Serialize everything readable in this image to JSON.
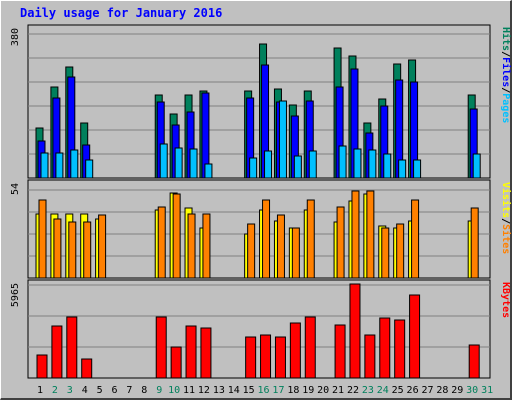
{
  "title": "Daily usage for January 2016",
  "colors": {
    "background": "#c0c0c0",
    "title": "#0000ff",
    "hits": "#00805c",
    "files": "#0000ff",
    "pages": "#00c0ff",
    "visits": "#ffff00",
    "sites": "#ff8000",
    "kbytes": "#ff0000",
    "grid": "#808080",
    "weekend_label": "#00805c",
    "weekday_label": "#000000"
  },
  "chart_data": [
    {
      "type": "bar",
      "panel": "hits_files_pages",
      "ymax_label": "380",
      "ylim": [
        0,
        380
      ],
      "legend": [
        "Pages",
        "/",
        "Files",
        "/",
        "Hits"
      ],
      "legend_colors": [
        "#00c0ff",
        "#000000",
        "#0000ff",
        "#000000",
        "#00805c"
      ],
      "categories": [
        "1",
        "2",
        "3",
        "4",
        "5",
        "6",
        "7",
        "8",
        "9",
        "10",
        "11",
        "12",
        "13",
        "14",
        "15",
        "16",
        "17",
        "18",
        "19",
        "20",
        "21",
        "22",
        "23",
        "24",
        "25",
        "26",
        "27",
        "28",
        "29",
        "30",
        "31"
      ],
      "series": [
        {
          "name": "Hits",
          "values": [
            128,
            231,
            282,
            139,
            0,
            0,
            0,
            0,
            212,
            162,
            211,
            221,
            0,
            0,
            221,
            341,
            226,
            186,
            221,
            0,
            331,
            311,
            141,
            202,
            291,
            301,
            0,
            0,
            0,
            211,
            0
          ]
        },
        {
          "name": "Files",
          "values": [
            94,
            204,
            257,
            85,
            0,
            0,
            0,
            0,
            194,
            136,
            169,
            216,
            0,
            0,
            204,
            289,
            193,
            158,
            197,
            0,
            233,
            279,
            115,
            183,
            250,
            245,
            0,
            0,
            0,
            176,
            0
          ]
        },
        {
          "name": "Pages",
          "values": [
            63,
            65,
            72,
            47,
            0,
            0,
            0,
            0,
            86,
            76,
            73,
            35,
            0,
            0,
            50,
            69,
            197,
            55,
            68,
            0,
            82,
            75,
            71,
            61,
            47,
            46,
            0,
            0,
            0,
            60,
            0
          ]
        }
      ]
    },
    {
      "type": "bar",
      "panel": "visits_sites",
      "ymax_label": "54",
      "ylim": [
        0,
        54
      ],
      "legend": [
        "Sites",
        "/",
        "Visits"
      ],
      "legend_colors": [
        "#ff8000",
        "#000000",
        "#ffff00"
      ],
      "categories": [
        "1",
        "2",
        "3",
        "4",
        "5",
        "6",
        "7",
        "8",
        "9",
        "10",
        "11",
        "12",
        "13",
        "14",
        "15",
        "16",
        "17",
        "18",
        "19",
        "20",
        "21",
        "22",
        "23",
        "24",
        "25",
        "26",
        "27",
        "28",
        "29",
        "30",
        "31"
      ],
      "series": [
        {
          "name": "Visits",
          "values": [
            37,
            37,
            37,
            37,
            34,
            0,
            0,
            0,
            39,
            49,
            40,
            29,
            0,
            0,
            25,
            39,
            33,
            29,
            39,
            0,
            32,
            44,
            48,
            30,
            29,
            33,
            0,
            0,
            0,
            33,
            0
          ]
        },
        {
          "name": "Sites",
          "values": [
            45,
            34,
            32,
            32,
            36,
            0,
            0,
            0,
            41,
            48,
            37,
            37,
            0,
            0,
            31,
            45,
            36,
            29,
            45,
            0,
            41,
            50,
            50,
            29,
            31,
            45,
            0,
            0,
            0,
            40,
            0
          ]
        }
      ]
    },
    {
      "type": "bar",
      "panel": "kbytes",
      "ymax_label": "5965",
      "ylim": [
        0,
        5965
      ],
      "legend": [
        "KBytes"
      ],
      "legend_colors": [
        "#ff0000"
      ],
      "categories": [
        "1",
        "2",
        "3",
        "4",
        "5",
        "6",
        "7",
        "8",
        "9",
        "10",
        "11",
        "12",
        "13",
        "14",
        "15",
        "16",
        "17",
        "18",
        "19",
        "20",
        "21",
        "22",
        "23",
        "24",
        "25",
        "26",
        "27",
        "28",
        "29",
        "30",
        "31"
      ],
      "series": [
        {
          "name": "KBytes",
          "values": [
            1474,
            3282,
            3883,
            1174,
            0,
            0,
            0,
            0,
            3883,
            1976,
            3282,
            3182,
            0,
            0,
            2577,
            2707,
            2598,
            3483,
            3883,
            0,
            3382,
            5965,
            2707,
            3783,
            3683,
            5264,
            0,
            0,
            0,
            2106,
            0
          ]
        }
      ]
    }
  ],
  "days": [
    {
      "label": "1",
      "weekend": false
    },
    {
      "label": "2",
      "weekend": true
    },
    {
      "label": "3",
      "weekend": true
    },
    {
      "label": "4",
      "weekend": false
    },
    {
      "label": "5",
      "weekend": false
    },
    {
      "label": "6",
      "weekend": false
    },
    {
      "label": "7",
      "weekend": false
    },
    {
      "label": "8",
      "weekend": false
    },
    {
      "label": "9",
      "weekend": true
    },
    {
      "label": "10",
      "weekend": true
    },
    {
      "label": "11",
      "weekend": false
    },
    {
      "label": "12",
      "weekend": false
    },
    {
      "label": "13",
      "weekend": false
    },
    {
      "label": "14",
      "weekend": false
    },
    {
      "label": "15",
      "weekend": false
    },
    {
      "label": "16",
      "weekend": true
    },
    {
      "label": "17",
      "weekend": true
    },
    {
      "label": "18",
      "weekend": false
    },
    {
      "label": "19",
      "weekend": false
    },
    {
      "label": "20",
      "weekend": false
    },
    {
      "label": "21",
      "weekend": false
    },
    {
      "label": "22",
      "weekend": false
    },
    {
      "label": "23",
      "weekend": true
    },
    {
      "label": "24",
      "weekend": true
    },
    {
      "label": "25",
      "weekend": false
    },
    {
      "label": "26",
      "weekend": false
    },
    {
      "label": "27",
      "weekend": false
    },
    {
      "label": "28",
      "weekend": false
    },
    {
      "label": "29",
      "weekend": false
    },
    {
      "label": "30",
      "weekend": true
    },
    {
      "label": "31",
      "weekend": true
    }
  ]
}
